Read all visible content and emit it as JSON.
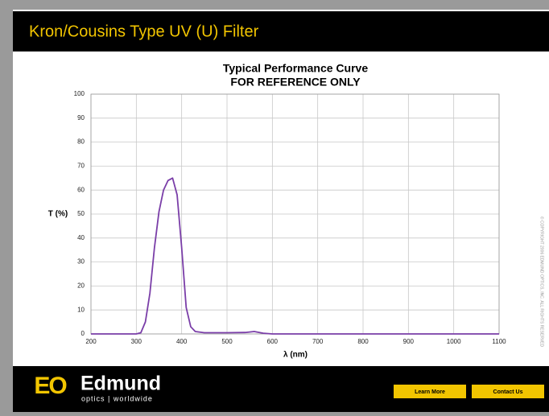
{
  "header": {
    "title": "Kron/Cousins Type UV (U) Filter"
  },
  "chart_data": {
    "type": "line",
    "title": "Typical Performance Curve",
    "subtitle": "FOR REFERENCE ONLY",
    "y_label": "T (%)",
    "x_label": "λ (nm)",
    "x": [
      200,
      300,
      310,
      320,
      330,
      340,
      350,
      360,
      370,
      380,
      390,
      400,
      410,
      420,
      430,
      450,
      500,
      540,
      560,
      580,
      600,
      700,
      1100
    ],
    "series": [
      {
        "name": "T",
        "color": "#7a3ea8",
        "values": [
          0,
          0,
          0.5,
          5,
          17,
          36,
          51,
          60,
          64,
          65,
          58,
          36,
          11,
          3,
          1,
          0.5,
          0.5,
          0.6,
          1,
          0.3,
          0,
          0,
          0
        ]
      }
    ],
    "xlim": [
      200,
      1100
    ],
    "xticks": [
      200,
      300,
      400,
      500,
      600,
      700,
      800,
      900,
      1000,
      1100
    ],
    "ylim": [
      0,
      100
    ],
    "yticks": [
      0,
      10,
      20,
      30,
      40,
      50,
      60,
      70,
      80,
      90,
      100
    ],
    "grid": true
  },
  "copyright": "© COPYRIGHT 2006 EDMUND OPTICS, INC. ALL RIGHTS RESERVED",
  "footer": {
    "logo_mark": "EO",
    "logo_word": "Edmund",
    "logo_tagline": "optics | worldwide",
    "buttons": [
      "Learn More",
      "Contact Us"
    ]
  }
}
